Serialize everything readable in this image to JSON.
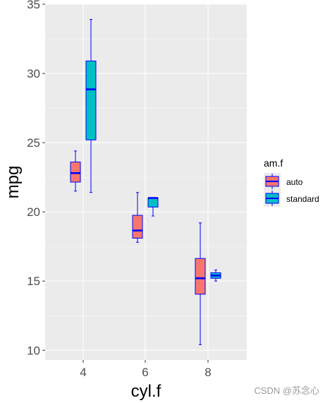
{
  "chart_data": {
    "type": "boxplot",
    "xlabel": "cyl.f",
    "ylabel": "mpg",
    "categories": [
      "4",
      "6",
      "8"
    ],
    "yticks": [
      10,
      15,
      20,
      25,
      30,
      35
    ],
    "ylim": [
      9.3,
      35
    ],
    "grid": true,
    "legend": {
      "title": "am.f",
      "position": "right",
      "entries": [
        {
          "label": "auto",
          "fill": "#F8766D"
        },
        {
          "label": "standard",
          "fill": "#00BFC4"
        }
      ]
    },
    "outline_color": "#0000FF",
    "series": [
      {
        "name": "auto",
        "fill": "#F8766D",
        "boxes": [
          {
            "category": "4",
            "min": 21.5,
            "q1": 22.15,
            "median": 22.8,
            "q3": 23.6,
            "max": 24.4
          },
          {
            "category": "6",
            "min": 17.8,
            "q1": 18.1,
            "median": 18.65,
            "q3": 19.75,
            "max": 21.4
          },
          {
            "category": "8",
            "min": 10.4,
            "q1": 14.05,
            "median": 15.2,
            "q3": 16.63,
            "max": 19.2
          }
        ]
      },
      {
        "name": "standard",
        "fill": "#00BFC4",
        "boxes": [
          {
            "category": "4",
            "min": 21.4,
            "q1": 25.2,
            "median": 28.85,
            "q3": 30.9,
            "max": 33.9
          },
          {
            "category": "6",
            "min": 19.7,
            "q1": 20.35,
            "median": 21.0,
            "q3": 21.0,
            "max": 21.0
          },
          {
            "category": "8",
            "min": 15.0,
            "q1": 15.2,
            "median": 15.4,
            "q3": 15.6,
            "max": 15.8
          }
        ]
      }
    ]
  },
  "watermark": "CSDN @苏念心"
}
